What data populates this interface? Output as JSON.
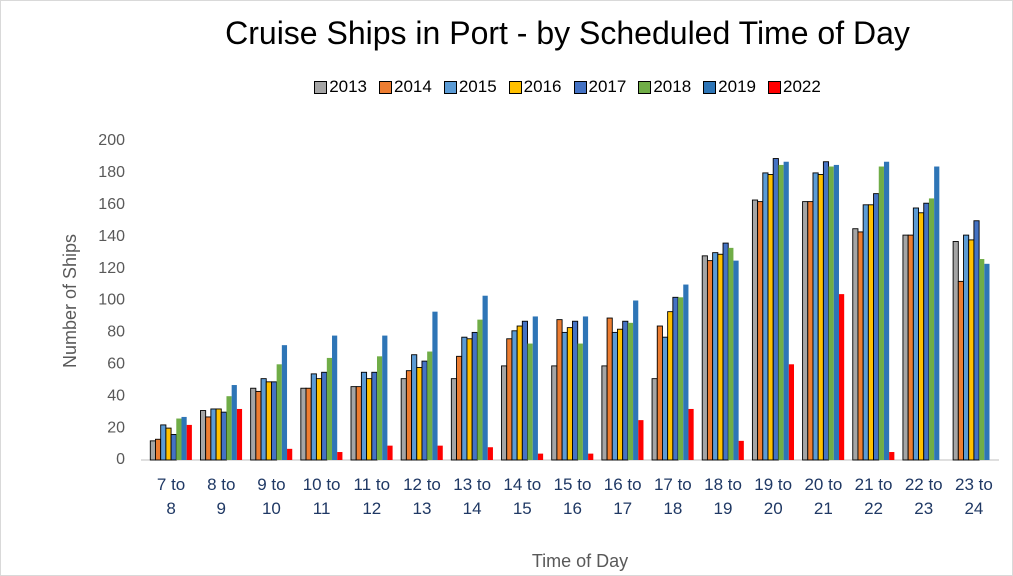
{
  "chart_data": {
    "type": "bar",
    "title": "Cruise Ships in Port - by Scheduled Time of Day",
    "x_label": "Time of Day",
    "y_label": "Number of Ships",
    "categories": [
      "7 to 8",
      "8 to 9",
      "9 to 10",
      "10 to 11",
      "11 to 12",
      "12 to 13",
      "13 to 14",
      "14 to 15",
      "15 to 16",
      "16 to 17",
      "17 to 18",
      "18 to 19",
      "19 to 20",
      "20 to 21",
      "21 to 22",
      "22 to 23",
      "23 to 24"
    ],
    "series": [
      {
        "name": "2013",
        "color": "#a5a5a5",
        "values": [
          12,
          31,
          45,
          45,
          46,
          51,
          51,
          59,
          59,
          59,
          51,
          128,
          163,
          162,
          145,
          141,
          137
        ]
      },
      {
        "name": "2014",
        "color": "#ed7d31",
        "values": [
          13,
          27,
          43,
          45,
          46,
          56,
          65,
          76,
          88,
          89,
          84,
          125,
          162,
          162,
          143,
          141,
          112
        ]
      },
      {
        "name": "2015",
        "color": "#5b9bd5",
        "values": [
          22,
          32,
          51,
          54,
          55,
          66,
          77,
          81,
          80,
          80,
          77,
          130,
          180,
          180,
          160,
          158,
          141
        ]
      },
      {
        "name": "2016",
        "color": "#ffc000",
        "values": [
          20,
          32,
          49,
          51,
          51,
          58,
          76,
          84,
          83,
          82,
          93,
          129,
          179,
          179,
          160,
          155,
          138
        ]
      },
      {
        "name": "2017",
        "color": "#4472c4",
        "values": [
          16,
          30,
          49,
          55,
          55,
          62,
          80,
          87,
          87,
          87,
          102,
          136,
          189,
          187,
          167,
          161,
          150
        ]
      },
      {
        "name": "2018",
        "color": "#70ad47",
        "values": [
          26,
          40,
          60,
          64,
          65,
          68,
          88,
          73,
          73,
          86,
          102,
          133,
          185,
          184,
          184,
          164,
          126
        ]
      },
      {
        "name": "2019",
        "color": "#2e75b6",
        "values": [
          27,
          47,
          72,
          78,
          78,
          93,
          103,
          90,
          90,
          100,
          110,
          125,
          187,
          185,
          187,
          184,
          123
        ]
      },
      {
        "name": "2022",
        "color": "#ff0000",
        "values": [
          22,
          32,
          7,
          5,
          9,
          9,
          8,
          4,
          4,
          25,
          32,
          12,
          60,
          104,
          5,
          null,
          null
        ]
      }
    ],
    "ylim": [
      0,
      200
    ],
    "yticks": [
      0,
      20,
      40,
      60,
      80,
      100,
      120,
      140,
      160,
      180,
      200
    ],
    "grid": false
  }
}
